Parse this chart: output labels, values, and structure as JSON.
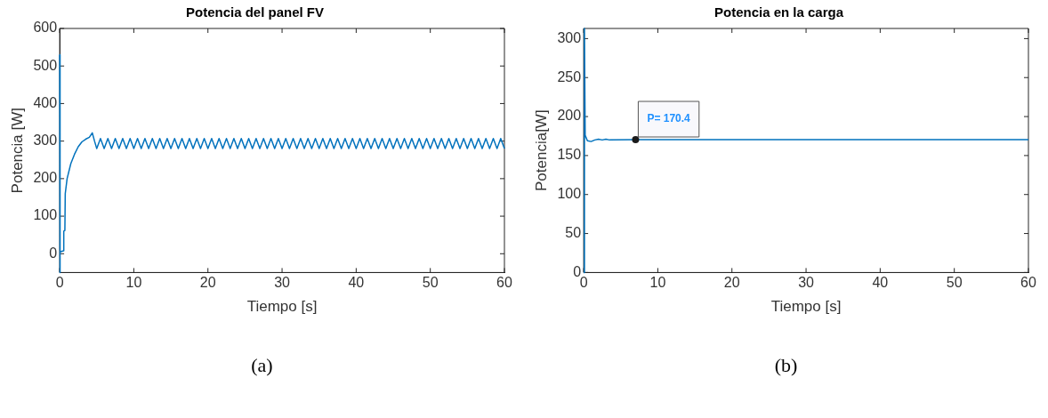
{
  "chart_data": [
    {
      "type": "line",
      "title": "Potencia del panel FV",
      "xlabel": "Tiempo [s]",
      "ylabel": "Potencia [W]",
      "xlim": [
        0,
        60
      ],
      "xticks": [
        0,
        10,
        20,
        30,
        40,
        50,
        60
      ],
      "ylim": [
        -50,
        600
      ],
      "yticks": [
        0,
        100,
        200,
        300,
        400,
        500,
        600
      ],
      "grid": false,
      "legend": false,
      "series": [
        {
          "color": "#0072bd",
          "x": [
            0,
            0,
            0.1,
            0.5,
            0.55,
            0.7,
            0.75,
            1,
            1.5,
            2,
            2.5,
            3,
            3.5,
            4,
            4.4,
            4.7,
            5,
            5.5,
            6,
            6.5,
            7,
            7.5,
            8,
            8.5,
            9,
            9.5,
            10,
            10.5,
            11,
            11.5,
            12,
            12.5,
            13,
            13.5,
            14,
            14.5,
            15,
            15.5,
            16,
            16.5,
            17,
            17.5,
            18,
            18.5,
            19,
            19.5,
            20,
            20.5,
            21,
            21.5,
            22,
            22.5,
            23,
            23.5,
            24,
            24.5,
            25,
            25.5,
            26,
            26.5,
            27,
            27.5,
            28,
            28.5,
            29,
            29.5,
            30,
            30.5,
            31,
            31.5,
            32,
            32.5,
            33,
            33.5,
            34,
            34.5,
            35,
            35.5,
            36,
            36.5,
            37,
            37.5,
            38,
            38.5,
            39,
            39.5,
            40,
            40.5,
            41,
            41.5,
            42,
            42.5,
            43,
            43.5,
            44,
            44.5,
            45,
            45.5,
            46,
            46.5,
            47,
            47.5,
            48,
            48.5,
            49,
            49.5,
            50,
            50.5,
            51,
            51.5,
            52,
            52.5,
            53,
            53.5,
            54,
            54.5,
            55,
            55.5,
            56,
            56.5,
            57,
            57.5,
            58,
            58.5,
            59,
            59.5,
            60
          ],
          "values": [
            530,
            -50,
            5,
            8,
            60,
            62,
            160,
            200,
            240,
            265,
            285,
            298,
            305,
            310,
            322,
            300,
            280,
            307,
            280,
            307,
            280,
            307,
            280,
            307,
            280,
            307,
            280,
            307,
            280,
            307,
            280,
            307,
            280,
            307,
            280,
            307,
            280,
            307,
            280,
            307,
            280,
            307,
            280,
            307,
            280,
            307,
            280,
            307,
            280,
            307,
            280,
            307,
            280,
            307,
            280,
            307,
            280,
            307,
            280,
            307,
            280,
            307,
            280,
            307,
            280,
            307,
            280,
            307,
            280,
            307,
            280,
            307,
            280,
            307,
            280,
            307,
            280,
            307,
            280,
            307,
            280,
            307,
            280,
            307,
            280,
            307,
            280,
            307,
            280,
            307,
            280,
            307,
            280,
            307,
            280,
            307,
            280,
            307,
            280,
            307,
            280,
            307,
            280,
            307,
            280,
            307,
            280,
            307,
            280,
            307,
            280,
            307,
            280,
            307,
            280,
            307,
            280,
            307,
            280,
            307,
            280,
            307,
            280,
            307,
            280,
            307,
            280
          ]
        }
      ],
      "annotations": [
        "(a)"
      ]
    },
    {
      "type": "line",
      "title": "Potencia en la carga",
      "xlabel": "Tiempo [s]",
      "ylabel": "Potencia[W]",
      "xlim": [
        0,
        60
      ],
      "xticks": [
        0,
        10,
        20,
        30,
        40,
        50,
        60
      ],
      "ylim": [
        0,
        313
      ],
      "yticks": [
        0,
        50,
        100,
        150,
        200,
        250,
        300
      ],
      "grid": false,
      "legend": false,
      "series": [
        {
          "color": "#0072bd",
          "x": [
            0,
            0.1,
            0.2,
            0.5,
            1,
            1.5,
            2,
            2.5,
            3,
            3.5,
            7,
            60
          ],
          "values": [
            0,
            313,
            176,
            169,
            168,
            170,
            171,
            170,
            171,
            170,
            170.4,
            170.4
          ]
        }
      ],
      "annotations": [
        {
          "text": "P= 170.4",
          "x": 7,
          "y": 170.4
        },
        "(b)"
      ]
    }
  ]
}
